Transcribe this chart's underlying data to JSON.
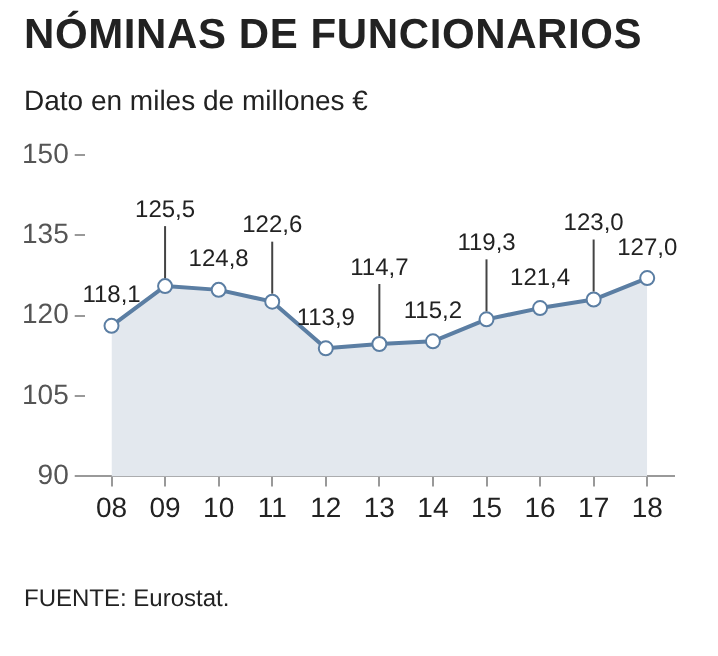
{
  "chart_data": {
    "type": "area",
    "title": "NÓMINAS DE FUNCIONARIOS",
    "subtitle": "Dato en miles de millones €",
    "annotations": [
      "FUENTE: Eurostat."
    ],
    "categories": [
      "08",
      "09",
      "10",
      "11",
      "12",
      "13",
      "14",
      "15",
      "16",
      "17",
      "18"
    ],
    "series": [
      {
        "color": "#5b7ea3",
        "values": [
          118.1,
          125.5,
          124.8,
          122.6,
          113.9,
          114.7,
          115.2,
          119.3,
          121.4,
          123.0,
          127.0
        ]
      }
    ],
    "value_labels": [
      "118,1",
      "125,5",
      "124,8",
      "122,6",
      "113,9",
      "114,7",
      "115,2",
      "119,3",
      "121,4",
      "123,0",
      "127,0"
    ],
    "ylim": [
      90,
      150
    ],
    "yticks": [
      90,
      105,
      120,
      135,
      150
    ],
    "grid": false,
    "legend": false,
    "marker": "circle",
    "line_style": "solid"
  }
}
